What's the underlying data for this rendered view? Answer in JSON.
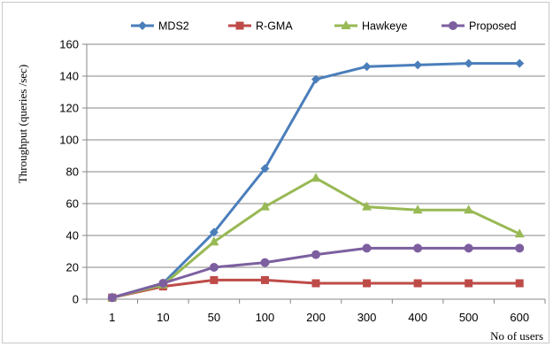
{
  "chart_data": {
    "type": "line",
    "categories": [
      "1",
      "10",
      "50",
      "100",
      "200",
      "300",
      "400",
      "500",
      "600"
    ],
    "ylabel": "Throughput (queries /sec)",
    "xlabel": "No of users",
    "ylim": [
      0,
      160
    ],
    "yticks": [
      0,
      20,
      40,
      60,
      80,
      100,
      120,
      140,
      160
    ],
    "grid": "horizontal",
    "legend_position": "top",
    "series": [
      {
        "name": "MDS2",
        "color": "#4a7ebb",
        "marker": "diamond",
        "values": [
          1,
          10,
          42,
          82,
          138,
          146,
          147,
          148,
          148
        ]
      },
      {
        "name": "R-GMA",
        "color": "#be4b48",
        "marker": "square",
        "values": [
          1,
          8,
          12,
          12,
          10,
          10,
          10,
          10,
          10
        ]
      },
      {
        "name": "Hawkeye",
        "color": "#98b954",
        "marker": "triangle",
        "values": [
          1,
          9,
          36,
          58,
          76,
          58,
          56,
          56,
          41
        ]
      },
      {
        "name": "Proposed",
        "color": "#7d5fa0",
        "marker": "circle",
        "values": [
          1,
          10,
          20,
          23,
          28,
          32,
          32,
          32,
          32
        ]
      }
    ]
  }
}
